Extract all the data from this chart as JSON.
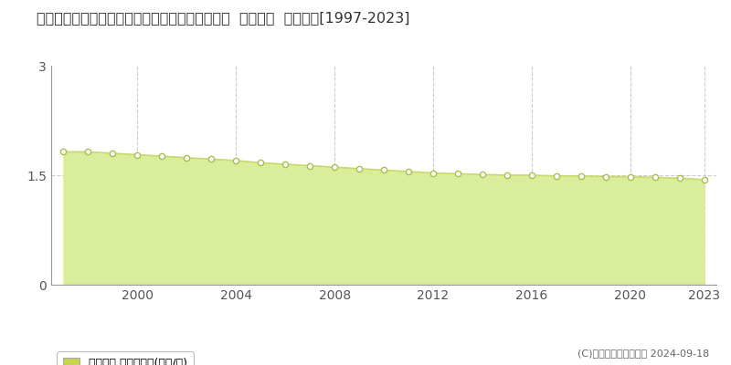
{
  "title": "福島県耶麻郡北塩原村大字桧原字早稲沢５４１番  基準地価  地価推移[1997-2023]",
  "years": [
    1997,
    1998,
    1999,
    2000,
    2001,
    2002,
    2003,
    2004,
    2005,
    2006,
    2007,
    2008,
    2009,
    2010,
    2011,
    2012,
    2013,
    2014,
    2015,
    2016,
    2017,
    2018,
    2019,
    2020,
    2021,
    2022,
    2023
  ],
  "values": [
    1.82,
    1.82,
    1.8,
    1.78,
    1.76,
    1.74,
    1.72,
    1.7,
    1.67,
    1.65,
    1.63,
    1.61,
    1.59,
    1.57,
    1.55,
    1.53,
    1.52,
    1.51,
    1.5,
    1.5,
    1.49,
    1.49,
    1.48,
    1.48,
    1.47,
    1.46,
    1.44
  ],
  "line_color": "#c8d96e",
  "fill_color": "#d9ed9b",
  "marker_color": "#ffffff",
  "marker_edge_color": "#aabf50",
  "ylim": [
    0,
    3
  ],
  "yticks": [
    0,
    1.5,
    3
  ],
  "xticks": [
    2000,
    2004,
    2008,
    2012,
    2016,
    2020,
    2023
  ],
  "legend_label": "基準地価 平均坪単価(万円/坪)",
  "legend_color": "#c8d44a",
  "copyright_text": "(C)土地価格ドットコム 2024-09-18",
  "background_color": "#ffffff",
  "plot_bg_color": "#ffffff",
  "grid_color": "#cccccc",
  "title_fontsize": 11.5,
  "tick_fontsize": 10
}
